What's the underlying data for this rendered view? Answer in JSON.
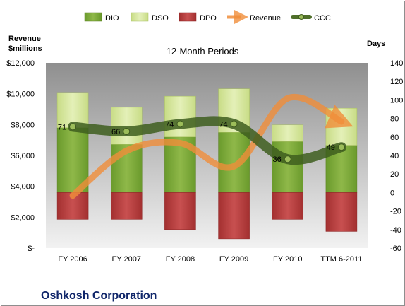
{
  "chart_data": {
    "type": "bar",
    "title": "12-Month Periods",
    "company": "Oshkosh Corporation",
    "categories": [
      "FY 2006",
      "FY 2007",
      "FY 2008",
      "FY 2009",
      "FY 2010",
      "TTM 6-2011"
    ],
    "left_axis": {
      "title_line1": "Revenue",
      "title_line2": "$millions",
      "ylim": [
        0,
        12000
      ],
      "ticks": [
        "$-",
        "$2,000",
        "$4,000",
        "$6,000",
        "$8,000",
        "$10,000",
        "$12,000"
      ]
    },
    "right_axis": {
      "title": "Days",
      "ylim": [
        -60,
        140
      ],
      "ticks": [
        "-60",
        "-40",
        "-20",
        "0",
        "20",
        "40",
        "60",
        "80",
        "100",
        "120",
        "140"
      ]
    },
    "legend_position": "top",
    "series": [
      {
        "name": "DIO",
        "type": "bar",
        "axis": "right",
        "values": [
          70,
          52,
          60,
          65,
          55,
          51
        ],
        "color": "#7ea63b"
      },
      {
        "name": "DSO",
        "type": "bar",
        "axis": "right",
        "values": [
          38,
          40,
          44,
          47,
          18,
          40
        ],
        "color": "#d9e8a5"
      },
      {
        "name": "DPO",
        "type": "bar",
        "axis": "right",
        "values": [
          -29,
          -29,
          -40,
          -50,
          -29,
          -42
        ],
        "color": "#b63c3c"
      },
      {
        "name": "Revenue",
        "type": "line",
        "axis": "left",
        "values": [
          3400,
          6300,
          6800,
          5300,
          9700,
          8200
        ],
        "color": "#f08d3a"
      },
      {
        "name": "CCC",
        "type": "line",
        "axis": "right",
        "values": [
          71,
          66,
          74,
          74,
          36,
          49
        ],
        "labels": [
          "71",
          "66",
          "74",
          "74",
          "36",
          "49"
        ],
        "color": "#4f6f2a"
      }
    ],
    "grid": false
  }
}
